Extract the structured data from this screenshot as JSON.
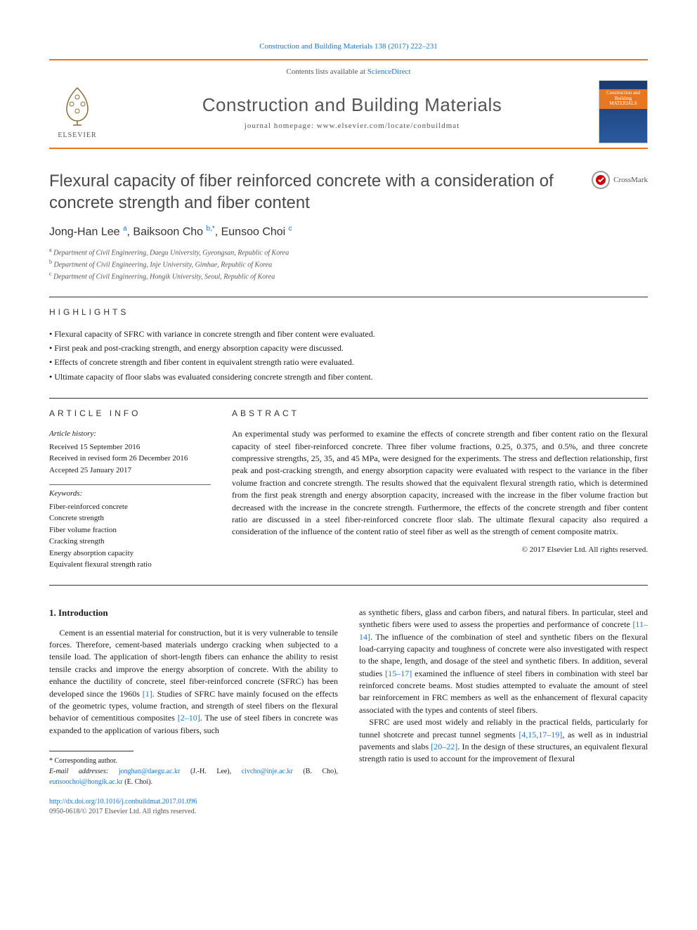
{
  "topbar": "Construction and Building Materials 138 (2017) 222–231",
  "contents_prefix": "Contents lists available at ",
  "contents_link": "ScienceDirect",
  "journal_name": "Construction and Building Materials",
  "journal_home_prefix": "journal homepage: ",
  "journal_home": "www.elsevier.com/locate/conbuildmat",
  "publisher": "ELSEVIER",
  "cover_text": "Construction and Building MATERIALS",
  "title": "Flexural capacity of fiber reinforced concrete with a consideration of concrete strength and fiber content",
  "crossmark": "CrossMark",
  "authors_html": "Jong-Han Lee <sup>a</sup>, Baiksoon Cho <sup>b,*</sup>, Eunsoo Choi <sup>c</sup>",
  "affiliations": [
    {
      "sup": "a",
      "text": "Department of Civil Engineering, Daegu University, Gyeongsan, Republic of Korea"
    },
    {
      "sup": "b",
      "text": "Department of Civil Engineering, Inje University, Gimhae, Republic of Korea"
    },
    {
      "sup": "c",
      "text": "Department of Civil Engineering, Hongik University, Seoul, Republic of Korea"
    }
  ],
  "highlights_label": "highlights",
  "highlights": [
    "Flexural capacity of SFRC with variance in concrete strength and fiber content were evaluated.",
    "First peak and post-cracking strength, and energy absorption capacity were discussed.",
    "Effects of concrete strength and fiber content in equivalent strength ratio were evaluated.",
    "Ultimate capacity of floor slabs was evaluated considering concrete strength and fiber content."
  ],
  "article_info_label": "article info",
  "history_head": "Article history:",
  "history": [
    "Received 15 September 2016",
    "Received in revised form 26 December 2016",
    "Accepted 25 January 2017"
  ],
  "keywords_head": "Keywords:",
  "keywords": [
    "Fiber-reinforced concrete",
    "Concrete strength",
    "Fiber volume fraction",
    "Cracking strength",
    "Energy absorption capacity",
    "Equivalent flexural strength ratio"
  ],
  "abstract_label": "abstract",
  "abstract": "An experimental study was performed to examine the effects of concrete strength and fiber content ratio on the flexural capacity of steel fiber-reinforced concrete. Three fiber volume fractions, 0.25, 0.375, and 0.5%, and three concrete compressive strengths, 25, 35, and 45 MPa, were designed for the experiments. The stress and deflection relationship, first peak and post-cracking strength, and energy absorption capacity were evaluated with respect to the variance in the fiber volume fraction and concrete strength. The results showed that the equivalent flexural strength ratio, which is determined from the first peak strength and energy absorption capacity, increased with the increase in the fiber volume fraction but decreased with the increase in the concrete strength. Furthermore, the effects of the concrete strength and fiber content ratio are discussed in a steel fiber-reinforced concrete floor slab. The ultimate flexural capacity also required a consideration of the influence of the content ratio of steel fiber as well as the strength of cement composite matrix.",
  "copyright": "© 2017 Elsevier Ltd. All rights reserved.",
  "intro_head": "1. Introduction",
  "intro_p1_a": "Cement is an essential material for construction, but it is very vulnerable to tensile forces. Therefore, cement-based materials undergo cracking when subjected to a tensile load. The application of short-length fibers can enhance the ability to resist tensile cracks and improve the energy absorption of concrete. With the ability to enhance the ductility of concrete, steel fiber-reinforced concrete (SFRC) has been developed since the 1960s ",
  "intro_ref1": "[1]",
  "intro_p1_b": ". Studies of SFRC have mainly focused on the effects of the geometric types, volume fraction, and strength of steel fibers on the flexural behavior of cementitious composites ",
  "intro_ref2": "[2–10]",
  "intro_p1_c": ". The use of steel fibers in concrete was expanded to the application of various fibers, such",
  "intro_p2_a": "as synthetic fibers, glass and carbon fibers, and natural fibers. In particular, steel and synthetic fibers were used to assess the properties and performance of concrete ",
  "intro_ref3": "[11–14]",
  "intro_p2_b": ". The influence of the combination of steel and synthetic fibers on the flexural load-carrying capacity and toughness of concrete were also investigated with respect to the shape, length, and dosage of the steel and synthetic fibers. In addition, several studies ",
  "intro_ref4": "[15–17]",
  "intro_p2_c": " examined the influence of steel fibers in combination with steel bar reinforced concrete beams. Most studies attempted to evaluate the amount of steel bar reinforcement in FRC members as well as the enhancement of flexural capacity associated with the types and contents of steel fibers.",
  "intro_p3_a": "SFRC are used most widely and reliably in the practical fields, particularly for tunnel shotcrete and precast tunnel segments ",
  "intro_ref5": "[4,15,17–19]",
  "intro_p3_b": ", as well as in industrial pavements and slabs ",
  "intro_ref6": "[20–22]",
  "intro_p3_c": ". In the design of these structures, an equivalent flexural strength ratio is used to account for the improvement of flexural",
  "corr_label": "* Corresponding author.",
  "email_label": "E-mail addresses: ",
  "emails": [
    {
      "addr": "jonghan@daegu.ac.kr",
      "who": "(J.-H. Lee)"
    },
    {
      "addr": "civcho@inje.ac.kr",
      "who": "(B. Cho)"
    },
    {
      "addr": "eunsoochoi@hongik.ac.kr",
      "who": "(E. Choi)"
    }
  ],
  "doi": "http://dx.doi.org/10.1016/j.conbuildmat.2017.01.096",
  "issn": "0950-0618/© 2017 Elsevier Ltd. All rights reserved."
}
